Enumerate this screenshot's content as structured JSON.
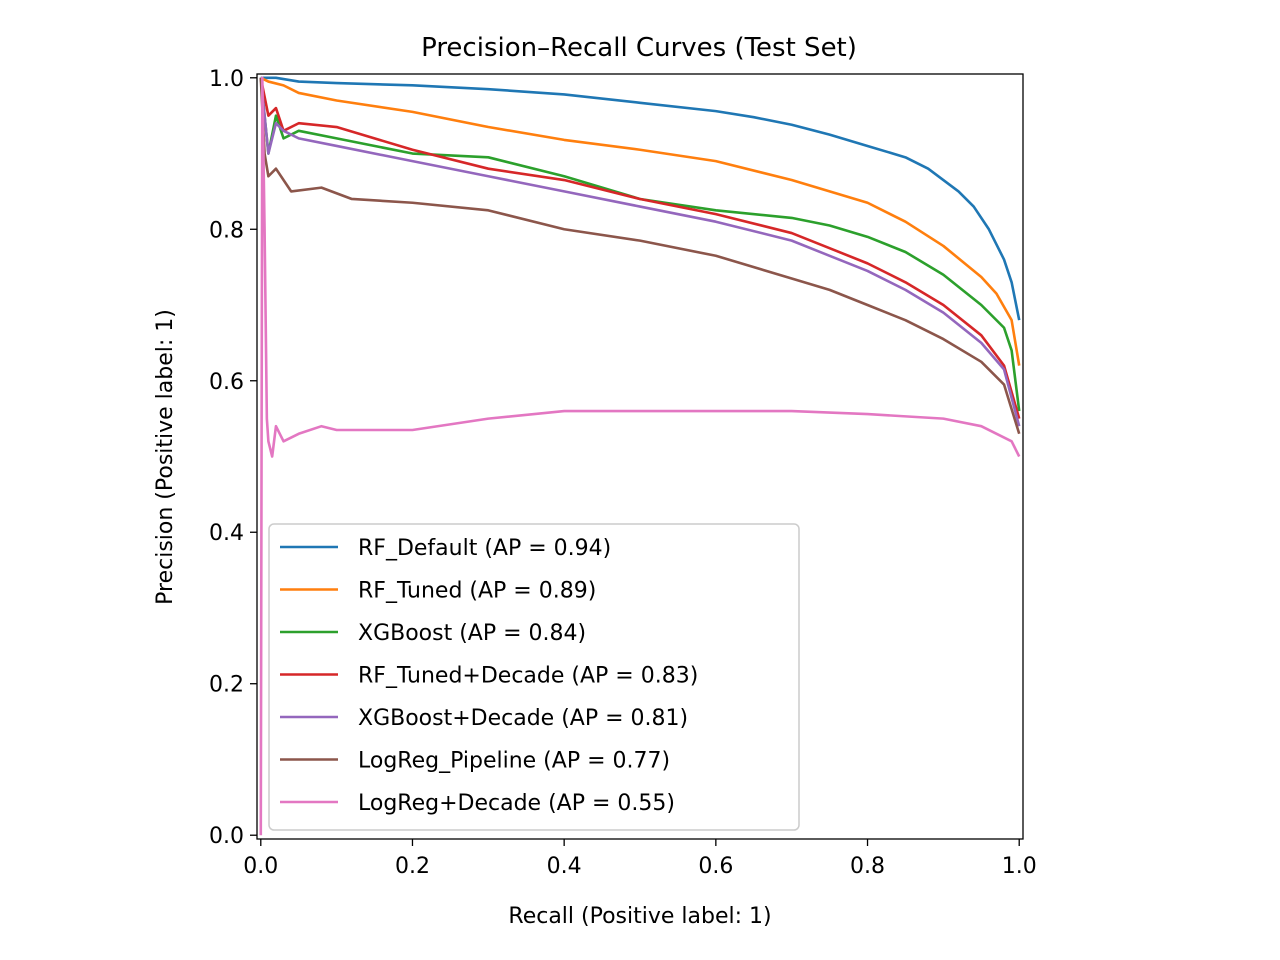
{
  "chart_data": {
    "type": "line",
    "title": "Precision–Recall Curves (Test Set)",
    "xlabel": "Recall (Positive label: 1)",
    "ylabel": "Precision (Positive label: 1)",
    "xlim": [
      -0.005,
      1.005
    ],
    "ylim": [
      -0.005,
      1.005
    ],
    "xticks": [
      0.0,
      0.2,
      0.4,
      0.6,
      0.8,
      1.0
    ],
    "yticks": [
      0.0,
      0.2,
      0.4,
      0.6,
      0.8,
      1.0
    ],
    "xtick_labels": [
      "0.0",
      "0.2",
      "0.4",
      "0.6",
      "0.8",
      "1.0"
    ],
    "ytick_labels": [
      "0.0",
      "0.2",
      "0.4",
      "0.6",
      "0.8",
      "1.0"
    ],
    "grid": false,
    "legend_position": "lower-left",
    "series": [
      {
        "name": "RF_Default (AP = 0.94)",
        "color": "#1f77b4",
        "x": [
          0.0,
          0.005,
          0.02,
          0.05,
          0.1,
          0.2,
          0.3,
          0.4,
          0.5,
          0.6,
          0.65,
          0.7,
          0.75,
          0.8,
          0.85,
          0.88,
          0.9,
          0.92,
          0.94,
          0.96,
          0.97,
          0.98,
          0.99,
          1.0
        ],
        "y": [
          1.0,
          1.0,
          1.0,
          0.995,
          0.993,
          0.99,
          0.985,
          0.978,
          0.967,
          0.956,
          0.948,
          0.938,
          0.925,
          0.91,
          0.895,
          0.88,
          0.865,
          0.85,
          0.83,
          0.8,
          0.78,
          0.76,
          0.73,
          0.68
        ]
      },
      {
        "name": "RF_Tuned (AP = 0.89)",
        "color": "#ff7f0e",
        "x": [
          0.0,
          0.01,
          0.03,
          0.05,
          0.1,
          0.2,
          0.3,
          0.4,
          0.5,
          0.6,
          0.7,
          0.75,
          0.8,
          0.85,
          0.9,
          0.95,
          0.97,
          0.99,
          1.0
        ],
        "y": [
          1.0,
          0.995,
          0.99,
          0.98,
          0.97,
          0.955,
          0.935,
          0.918,
          0.905,
          0.89,
          0.865,
          0.85,
          0.835,
          0.81,
          0.778,
          0.737,
          0.715,
          0.68,
          0.62
        ]
      },
      {
        "name": "XGBoost (AP = 0.84)",
        "color": "#2ca02c",
        "x": [
          0.0,
          0.01,
          0.02,
          0.03,
          0.05,
          0.1,
          0.2,
          0.3,
          0.4,
          0.5,
          0.6,
          0.7,
          0.75,
          0.8,
          0.85,
          0.9,
          0.95,
          0.98,
          0.99,
          1.0
        ],
        "y": [
          1.0,
          0.9,
          0.95,
          0.92,
          0.93,
          0.92,
          0.9,
          0.895,
          0.87,
          0.84,
          0.825,
          0.815,
          0.805,
          0.79,
          0.77,
          0.74,
          0.7,
          0.67,
          0.64,
          0.56
        ]
      },
      {
        "name": "RF_Tuned+Decade (AP = 0.83)",
        "color": "#d62728",
        "x": [
          0.0,
          0.01,
          0.02,
          0.03,
          0.05,
          0.1,
          0.2,
          0.3,
          0.4,
          0.5,
          0.6,
          0.7,
          0.75,
          0.8,
          0.85,
          0.9,
          0.95,
          0.98,
          1.0
        ],
        "y": [
          1.0,
          0.95,
          0.96,
          0.93,
          0.94,
          0.935,
          0.905,
          0.88,
          0.865,
          0.84,
          0.82,
          0.795,
          0.775,
          0.755,
          0.73,
          0.7,
          0.66,
          0.62,
          0.55
        ]
      },
      {
        "name": "XGBoost+Decade (AP = 0.81)",
        "color": "#9467bd",
        "x": [
          0.0,
          0.01,
          0.02,
          0.03,
          0.05,
          0.1,
          0.2,
          0.3,
          0.4,
          0.5,
          0.6,
          0.7,
          0.75,
          0.8,
          0.85,
          0.9,
          0.95,
          0.98,
          1.0
        ],
        "y": [
          1.0,
          0.9,
          0.94,
          0.93,
          0.92,
          0.91,
          0.89,
          0.87,
          0.85,
          0.83,
          0.81,
          0.785,
          0.765,
          0.745,
          0.72,
          0.69,
          0.65,
          0.615,
          0.54
        ]
      },
      {
        "name": "LogReg_Pipeline (AP = 0.77)",
        "color": "#8c564b",
        "x": [
          0.0,
          0.005,
          0.01,
          0.02,
          0.04,
          0.08,
          0.12,
          0.2,
          0.3,
          0.4,
          0.5,
          0.6,
          0.7,
          0.75,
          0.8,
          0.85,
          0.9,
          0.95,
          0.98,
          1.0
        ],
        "y": [
          1.0,
          0.9,
          0.87,
          0.88,
          0.85,
          0.855,
          0.84,
          0.835,
          0.825,
          0.8,
          0.785,
          0.765,
          0.735,
          0.72,
          0.7,
          0.68,
          0.655,
          0.625,
          0.595,
          0.53
        ]
      },
      {
        "name": "LogReg+Decade (AP = 0.55)",
        "color": "#e377c2",
        "x": [
          0.0,
          0.002,
          0.005,
          0.008,
          0.01,
          0.015,
          0.02,
          0.03,
          0.05,
          0.08,
          0.1,
          0.2,
          0.3,
          0.4,
          0.5,
          0.6,
          0.7,
          0.8,
          0.9,
          0.95,
          0.99,
          1.0
        ],
        "y": [
          0.0,
          1.0,
          0.8,
          0.55,
          0.52,
          0.5,
          0.54,
          0.52,
          0.53,
          0.54,
          0.535,
          0.535,
          0.55,
          0.56,
          0.56,
          0.56,
          0.56,
          0.556,
          0.55,
          0.54,
          0.52,
          0.5
        ]
      }
    ]
  }
}
